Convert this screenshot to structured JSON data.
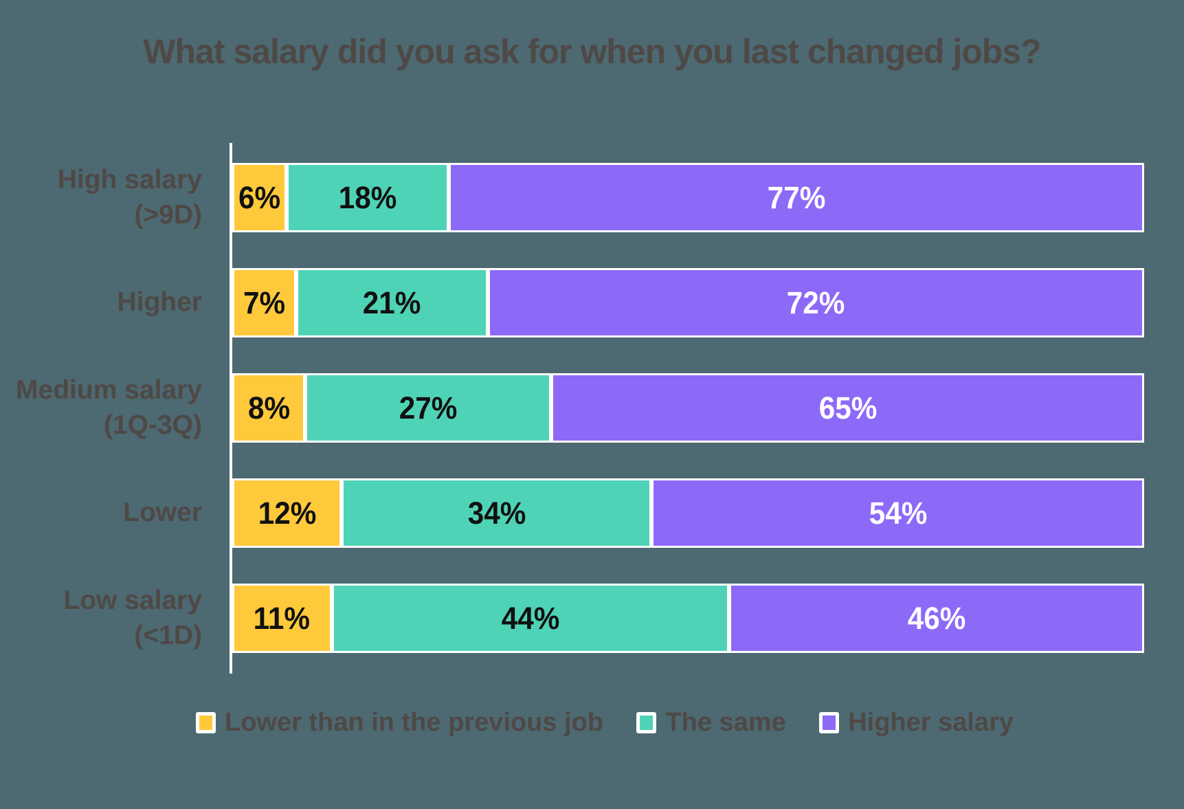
{
  "chart_data": {
    "type": "bar",
    "orientation": "horizontal",
    "stacked": true,
    "percent_stacked": true,
    "title": "What salary did you ask for when you last changed jobs?",
    "categories": [
      "High salary (>9D)",
      "Higher",
      "Medium salary (1Q-3Q)",
      "Lower",
      "Low salary (<1D)"
    ],
    "series": [
      {
        "name": "Lower than in the previous job",
        "color": "#FFC93C",
        "label_color": "#111111",
        "values": [
          6,
          7,
          8,
          12,
          11
        ]
      },
      {
        "name": "The same",
        "color": "#4FD3B6",
        "label_color": "#111111",
        "values": [
          18,
          21,
          27,
          34,
          44
        ]
      },
      {
        "name": "Higher salary",
        "color": "#8D69F8",
        "label_color": "#FFFFFF",
        "values": [
          77,
          72,
          65,
          54,
          46
        ]
      }
    ],
    "value_suffix": "%",
    "legend_position": "bottom",
    "grid": false,
    "axis_color": "#FFFFFF",
    "background_color": "#4D6972",
    "text_color": "#4E4946"
  }
}
